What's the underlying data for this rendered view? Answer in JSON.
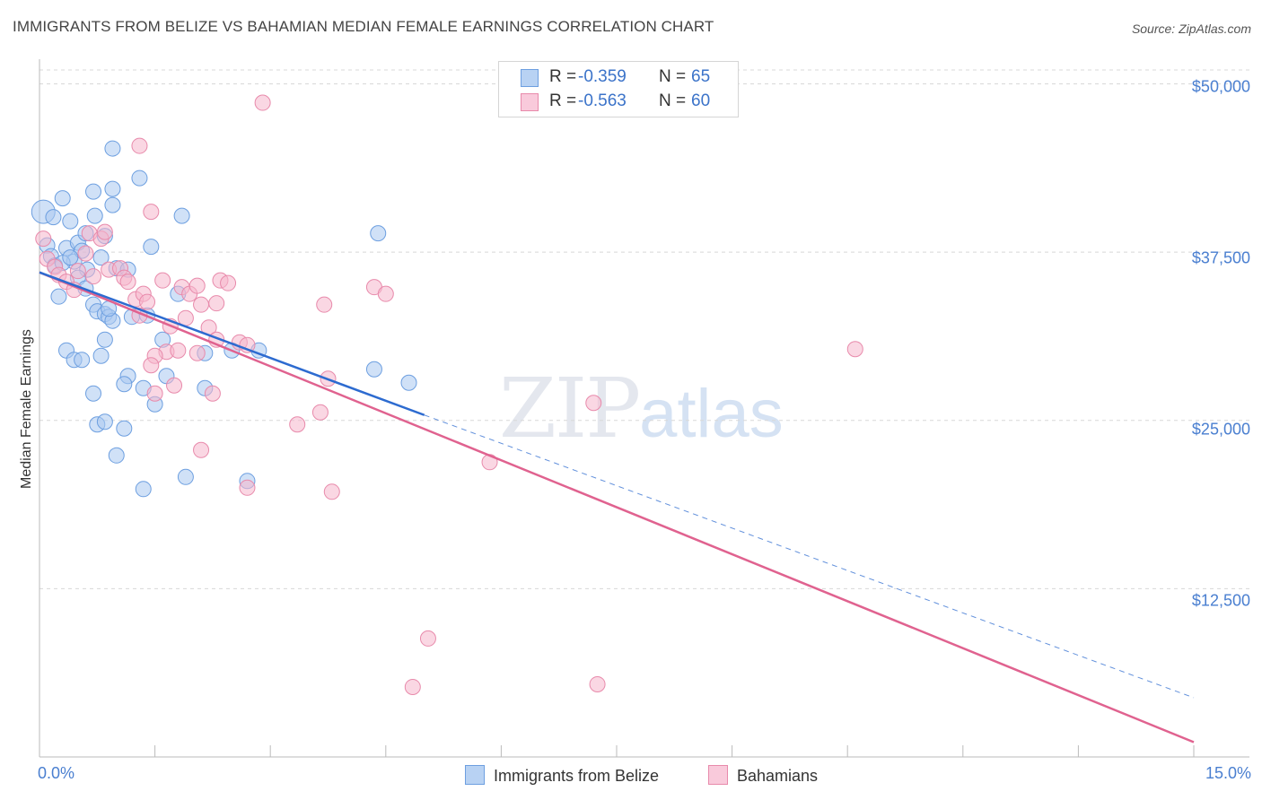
{
  "title": "IMMIGRANTS FROM BELIZE VS BAHAMIAN MEDIAN FEMALE EARNINGS CORRELATION CHART",
  "source": "Source: ZipAtlas.com",
  "watermark": {
    "zip": "ZIP",
    "atlas": "atlas"
  },
  "colors": {
    "belize_fill": "#a9c8f0",
    "belize_stroke": "#6d9fe0",
    "belize_line": "#2d6bd0",
    "bahamian_fill": "#f6b6cc",
    "bahamian_stroke": "#e88aab",
    "bahamian_line": "#e0628f",
    "grid": "#d8d8d8",
    "tick_label": "#4a7fd0"
  },
  "legend": {
    "rows": [
      {
        "r_label": "R =",
        "r_value": "-0.359",
        "n_label": "N =",
        "n_value": "65"
      },
      {
        "r_label": "R =",
        "r_value": "-0.563",
        "n_label": "N =",
        "n_value": "60"
      }
    ],
    "series_names": [
      "Immigrants from Belize",
      "Bahamians"
    ]
  },
  "chart_data": {
    "type": "scatter",
    "title": "IMMIGRANTS FROM BELIZE VS BAHAMIAN MEDIAN FEMALE EARNINGS CORRELATION CHART",
    "xlabel": "",
    "ylabel": "Median Female Earnings",
    "xlim": [
      0,
      15
    ],
    "ylim": [
      0,
      52500
    ],
    "x_tick_labels": [
      "0.0%",
      "15.0%"
    ],
    "y_ticks": [
      12500,
      25000,
      37500,
      50000
    ],
    "y_tick_labels": [
      "$12,500",
      "$25,000",
      "$37,500",
      "$50,000"
    ],
    "series": [
      {
        "name": "Immigrants from Belize",
        "trend": {
          "x": [
            0,
            5.0
          ],
          "y": [
            36000,
            25400
          ],
          "extended_dashed_to": [
            15,
            4400
          ]
        },
        "points": [
          [
            0.05,
            40500
          ],
          [
            0.1,
            38000
          ],
          [
            0.15,
            37200
          ],
          [
            0.2,
            36500
          ],
          [
            0.18,
            40100
          ],
          [
            0.3,
            41500
          ],
          [
            0.35,
            37800
          ],
          [
            0.4,
            39800
          ],
          [
            0.45,
            36800
          ],
          [
            0.5,
            38200
          ],
          [
            0.55,
            37600
          ],
          [
            0.6,
            38900
          ],
          [
            0.62,
            36200
          ],
          [
            0.7,
            42000
          ],
          [
            0.72,
            40200
          ],
          [
            0.8,
            37100
          ],
          [
            0.85,
            38700
          ],
          [
            0.95,
            41000
          ],
          [
            0.95,
            45200
          ],
          [
            0.95,
            42200
          ],
          [
            1.0,
            36300
          ],
          [
            1.15,
            36200
          ],
          [
            1.2,
            32700
          ],
          [
            1.3,
            43000
          ],
          [
            1.45,
            37900
          ],
          [
            1.4,
            32800
          ],
          [
            1.85,
            40200
          ],
          [
            0.7,
            33600
          ],
          [
            0.75,
            33100
          ],
          [
            0.85,
            32900
          ],
          [
            0.9,
            32700
          ],
          [
            0.95,
            32400
          ],
          [
            0.85,
            31000
          ],
          [
            0.35,
            30200
          ],
          [
            0.45,
            29500
          ],
          [
            0.55,
            29500
          ],
          [
            0.8,
            29800
          ],
          [
            0.7,
            27000
          ],
          [
            1.15,
            28300
          ],
          [
            1.1,
            27700
          ],
          [
            1.35,
            27400
          ],
          [
            1.5,
            26200
          ],
          [
            1.6,
            31000
          ],
          [
            1.65,
            28300
          ],
          [
            2.15,
            27400
          ],
          [
            2.15,
            30000
          ],
          [
            2.5,
            30200
          ],
          [
            2.85,
            30200
          ],
          [
            4.4,
            38900
          ],
          [
            4.35,
            28800
          ],
          [
            4.8,
            27800
          ],
          [
            0.75,
            24700
          ],
          [
            0.85,
            24900
          ],
          [
            1.1,
            24400
          ],
          [
            1.0,
            22400
          ],
          [
            1.35,
            19900
          ],
          [
            1.9,
            20800
          ],
          [
            2.7,
            20500
          ],
          [
            0.25,
            34200
          ],
          [
            0.5,
            35600
          ],
          [
            0.6,
            34800
          ],
          [
            0.9,
            33300
          ],
          [
            1.8,
            34400
          ],
          [
            0.3,
            36700
          ],
          [
            0.4,
            37100
          ]
        ]
      },
      {
        "name": "Bahamians",
        "trend": {
          "x": [
            0,
            15
          ],
          "y": [
            36000,
            1100
          ]
        },
        "points": [
          [
            0.05,
            38500
          ],
          [
            0.1,
            37000
          ],
          [
            0.2,
            36400
          ],
          [
            0.25,
            35800
          ],
          [
            0.35,
            35300
          ],
          [
            0.45,
            34700
          ],
          [
            0.5,
            36100
          ],
          [
            0.6,
            37400
          ],
          [
            0.65,
            38900
          ],
          [
            0.7,
            35700
          ],
          [
            0.8,
            38500
          ],
          [
            0.85,
            39000
          ],
          [
            0.9,
            36200
          ],
          [
            1.05,
            36300
          ],
          [
            1.1,
            35600
          ],
          [
            1.15,
            35300
          ],
          [
            1.25,
            34000
          ],
          [
            1.3,
            32800
          ],
          [
            1.45,
            40500
          ],
          [
            1.3,
            45400
          ],
          [
            1.35,
            34400
          ],
          [
            1.4,
            33800
          ],
          [
            1.6,
            35400
          ],
          [
            1.85,
            34900
          ],
          [
            1.95,
            34400
          ],
          [
            2.05,
            35000
          ],
          [
            2.35,
            35400
          ],
          [
            2.45,
            35200
          ],
          [
            2.1,
            33600
          ],
          [
            2.3,
            33700
          ],
          [
            1.7,
            32000
          ],
          [
            1.9,
            32600
          ],
          [
            2.2,
            31900
          ],
          [
            2.3,
            31000
          ],
          [
            2.6,
            30800
          ],
          [
            2.7,
            30600
          ],
          [
            1.65,
            30100
          ],
          [
            1.8,
            30200
          ],
          [
            2.05,
            30000
          ],
          [
            1.5,
            29800
          ],
          [
            1.45,
            29100
          ],
          [
            1.75,
            27600
          ],
          [
            1.5,
            27000
          ],
          [
            2.25,
            27000
          ],
          [
            3.7,
            33600
          ],
          [
            4.35,
            34900
          ],
          [
            4.5,
            34400
          ],
          [
            3.75,
            28100
          ],
          [
            2.9,
            48600
          ],
          [
            3.35,
            24700
          ],
          [
            3.65,
            25600
          ],
          [
            2.7,
            20000
          ],
          [
            3.8,
            19700
          ],
          [
            2.1,
            22800
          ],
          [
            5.85,
            21900
          ],
          [
            7.2,
            26300
          ],
          [
            10.6,
            30300
          ],
          [
            5.05,
            8800
          ],
          [
            4.85,
            5200
          ],
          [
            7.25,
            5400
          ]
        ]
      }
    ]
  }
}
